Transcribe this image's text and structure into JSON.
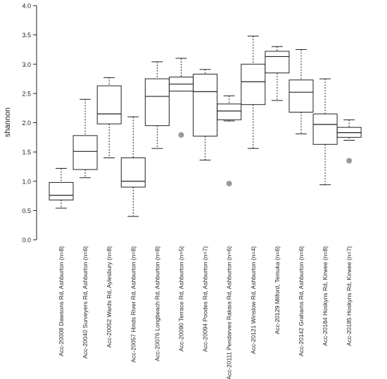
{
  "chart_data": {
    "type": "boxplot",
    "ylabel": "shannon",
    "ylim": [
      0,
      4
    ],
    "yticks": [
      "0.0",
      "0.5",
      "1.0",
      "1.5",
      "2.0",
      "2.5",
      "3.0",
      "3.5",
      "4.0"
    ],
    "grid": false,
    "categories": [
      "Acc-20008 Dawsons Rd, Ashburton (n=8)",
      "Acc-20040 Surveyers Rd, Ashburton (n=6)",
      "Acc-20052 Wards Rd, Aylesbury (n=8)",
      "Acc-20057 Hinds River Rd, Ashburton (n=8)",
      "Acc-20076 Longbeach Rd, Ashburton (n=8)",
      "Acc-20090 Terrace Rd, Ashburton (n=5)",
      "Acc-20094 Poodes Rd, Ashburton (n=7)",
      "Acc-20111 Pendarves Rakaia Rd, Ashburton (n=6)",
      "Acc-20121 Winslow Rd, Ashburton (n=4)",
      "Acc-20129 Milford, Temuka (n=6)",
      "Acc-20142 Grahams Rd, Ashburton (n=6)",
      "Acc-20184 Hoskyns Rd, Kirwee (n=8)",
      "Acc-20185 Hoskyns Rd, Kirwee (n=7)"
    ],
    "boxes": [
      {
        "min": 0.54,
        "q1": 0.68,
        "median": 0.76,
        "q3": 0.98,
        "max": 1.22,
        "outliers": []
      },
      {
        "min": 1.06,
        "q1": 1.2,
        "median": 1.51,
        "q3": 1.78,
        "max": 2.4,
        "outliers": []
      },
      {
        "min": 1.4,
        "q1": 1.98,
        "median": 2.15,
        "q3": 2.63,
        "max": 2.77,
        "outliers": []
      },
      {
        "min": 0.4,
        "q1": 0.9,
        "median": 1.0,
        "q3": 1.4,
        "max": 2.1,
        "outliers": []
      },
      {
        "min": 1.56,
        "q1": 1.95,
        "median": 2.45,
        "q3": 2.75,
        "max": 3.04,
        "outliers": []
      },
      {
        "min": 2.54,
        "q1": 2.54,
        "median": 2.66,
        "q3": 2.78,
        "max": 3.1,
        "outliers": [
          1.79
        ]
      },
      {
        "min": 1.36,
        "q1": 1.77,
        "median": 2.53,
        "q3": 2.83,
        "max": 2.91,
        "outliers": []
      },
      {
        "min": 2.03,
        "q1": 2.05,
        "median": 2.2,
        "q3": 2.32,
        "max": 2.46,
        "outliers": [
          0.96
        ]
      },
      {
        "min": 1.56,
        "q1": 2.31,
        "median": 2.7,
        "q3": 3.0,
        "max": 3.48,
        "outliers": []
      },
      {
        "min": 2.38,
        "q1": 2.85,
        "median": 3.13,
        "q3": 3.22,
        "max": 3.3,
        "outliers": []
      },
      {
        "min": 1.81,
        "q1": 2.18,
        "median": 2.52,
        "q3": 2.73,
        "max": 3.25,
        "outliers": []
      },
      {
        "min": 0.94,
        "q1": 1.63,
        "median": 1.97,
        "q3": 2.15,
        "max": 2.75,
        "outliers": []
      },
      {
        "min": 1.7,
        "q1": 1.75,
        "median": 1.83,
        "q3": 1.92,
        "max": 2.05,
        "outliers": [
          1.35
        ]
      }
    ],
    "colors": {
      "box": "#222222",
      "outlier": "#999999"
    }
  }
}
